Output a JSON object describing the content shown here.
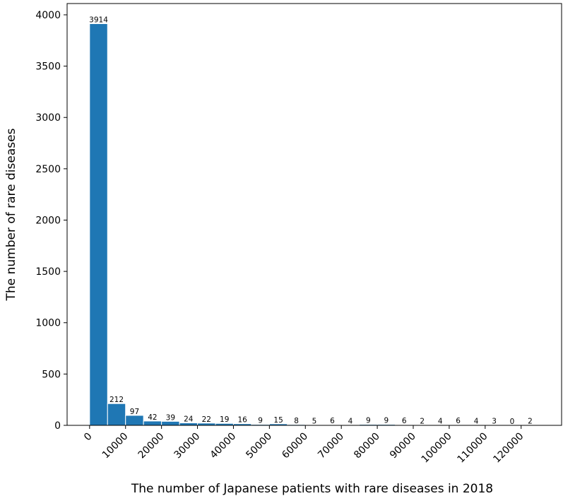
{
  "chart_data": {
    "type": "bar",
    "title": "",
    "xlabel": "The number of Japanese patients with rare diseases in 2018",
    "ylabel": "The number of rare diseases",
    "bar_color": "#1f77b4",
    "bin_width": 5000,
    "x": [
      0,
      5000,
      10000,
      15000,
      20000,
      25000,
      30000,
      35000,
      40000,
      45000,
      50000,
      55000,
      60000,
      65000,
      70000,
      75000,
      80000,
      85000,
      90000,
      95000,
      100000,
      105000,
      110000,
      115000,
      120000
    ],
    "values": [
      3914,
      212,
      97,
      42,
      39,
      24,
      22,
      19,
      16,
      9,
      15,
      8,
      5,
      6,
      4,
      9,
      9,
      6,
      2,
      4,
      6,
      4,
      3,
      0,
      2
    ],
    "labels": [
      "3914",
      "212",
      "97",
      "42",
      "39",
      "24",
      "22",
      "19",
      "16",
      "9",
      "15",
      "8",
      "5",
      "6",
      "4",
      "9",
      "9",
      "6",
      "2",
      "4",
      "6",
      "4",
      "3",
      "0",
      "2"
    ],
    "xticks": [
      0,
      10000,
      20000,
      30000,
      40000,
      50000,
      60000,
      70000,
      80000,
      90000,
      100000,
      110000,
      120000
    ],
    "xtick_labels": [
      "0",
      "10000",
      "20000",
      "30000",
      "40000",
      "50000",
      "60000",
      "70000",
      "80000",
      "90000",
      "100000",
      "110000",
      "120000"
    ],
    "yticks": [
      0,
      500,
      1000,
      1500,
      2000,
      2500,
      3000,
      3500,
      4000
    ],
    "ytick_labels": [
      "0",
      "500",
      "1000",
      "1500",
      "2000",
      "2500",
      "3000",
      "3500",
      "4000"
    ],
    "xlim": [
      -6250,
      131250
    ],
    "ylim": [
      0,
      4110
    ],
    "grid": false,
    "legend": "none"
  }
}
